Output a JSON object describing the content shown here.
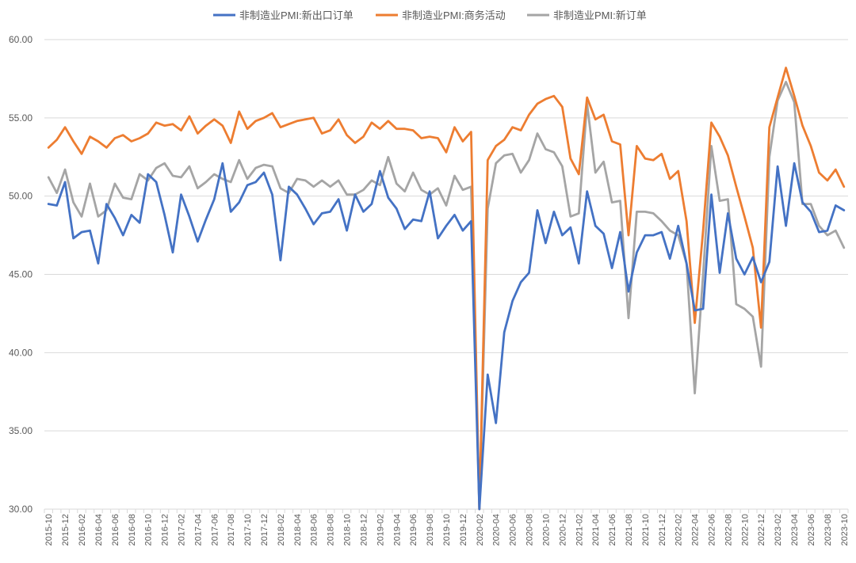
{
  "chart_data": {
    "type": "line",
    "title": "",
    "xlabel": "",
    "ylabel": "",
    "ylim": [
      30,
      60
    ],
    "yticks": [
      30,
      35,
      40,
      45,
      50,
      55,
      60
    ],
    "ytick_labels": [
      "30.00",
      "35.00",
      "40.00",
      "45.00",
      "50.00",
      "55.00",
      "60.00"
    ],
    "grid": true,
    "legend_position": "top",
    "x": [
      "2015-10",
      "2015-11",
      "2015-12",
      "2016-01",
      "2016-02",
      "2016-03",
      "2016-04",
      "2016-05",
      "2016-06",
      "2016-07",
      "2016-08",
      "2016-09",
      "2016-10",
      "2016-11",
      "2016-12",
      "2017-01",
      "2017-02",
      "2017-03",
      "2017-04",
      "2017-05",
      "2017-06",
      "2017-07",
      "2017-08",
      "2017-09",
      "2017-10",
      "2017-11",
      "2017-12",
      "2018-01",
      "2018-02",
      "2018-03",
      "2018-04",
      "2018-05",
      "2018-06",
      "2018-07",
      "2018-08",
      "2018-09",
      "2018-10",
      "2018-11",
      "2018-12",
      "2019-01",
      "2019-02",
      "2019-03",
      "2019-04",
      "2019-05",
      "2019-06",
      "2019-07",
      "2019-08",
      "2019-09",
      "2019-10",
      "2019-11",
      "2019-12",
      "2020-01",
      "2020-02",
      "2020-03",
      "2020-04",
      "2020-05",
      "2020-06",
      "2020-07",
      "2020-08",
      "2020-09",
      "2020-10",
      "2020-11",
      "2020-12",
      "2021-01",
      "2021-02",
      "2021-03",
      "2021-04",
      "2021-05",
      "2021-06",
      "2021-07",
      "2021-08",
      "2021-09",
      "2021-10",
      "2021-11",
      "2021-12",
      "2022-01",
      "2022-02",
      "2022-03",
      "2022-04",
      "2022-05",
      "2022-06",
      "2022-07",
      "2022-08",
      "2022-09",
      "2022-10",
      "2022-11",
      "2022-12",
      "2023-01",
      "2023-02",
      "2023-03",
      "2023-04",
      "2023-05",
      "2023-06",
      "2023-07",
      "2023-08",
      "2023-09",
      "2023-10"
    ],
    "x_tick_labels": [
      "2015-10",
      "2015-12",
      "2016-02",
      "2016-04",
      "2016-06",
      "2016-08",
      "2016-10",
      "2016-12",
      "2017-02",
      "2017-04",
      "2017-06",
      "2017-08",
      "2017-10",
      "2017-12",
      "2018-02",
      "2018-04",
      "2018-06",
      "2018-08",
      "2018-10",
      "2018-12",
      "2019-02",
      "2019-04",
      "2019-06",
      "2019-08",
      "2019-10",
      "2019-12",
      "2020-02",
      "2020-04",
      "2020-06",
      "2020-08",
      "2020-10",
      "2020-12",
      "2021-02",
      "2021-04",
      "2021-06",
      "2021-08",
      "2021-10",
      "2021-12",
      "2022-02",
      "2022-04",
      "2022-06",
      "2022-08",
      "2022-10",
      "2022-12",
      "2023-02",
      "2023-04",
      "2023-06",
      "2023-08",
      "2023-10"
    ],
    "series": [
      {
        "name": "非制造业PMI:新出口订单",
        "color": "#4472C4",
        "values": [
          49.5,
          49.4,
          50.9,
          47.3,
          47.7,
          47.8,
          45.7,
          49.5,
          48.6,
          47.5,
          48.8,
          48.3,
          51.4,
          50.9,
          48.8,
          46.4,
          50.1,
          48.7,
          47.1,
          48.5,
          49.8,
          52.1,
          49.0,
          49.6,
          50.7,
          50.9,
          51.5,
          50.1,
          45.9,
          50.6,
          50.1,
          49.2,
          48.2,
          48.9,
          49.0,
          49.8,
          47.8,
          50.1,
          49.0,
          49.5,
          51.6,
          49.9,
          49.2,
          47.9,
          48.5,
          48.4,
          50.3,
          47.3,
          48.1,
          48.8,
          47.8,
          48.4,
          29.9,
          38.6,
          35.5,
          41.3,
          43.3,
          44.5,
          45.1,
          49.1,
          47.0,
          49.0,
          47.5,
          48.0,
          45.7,
          50.3,
          48.1,
          47.6,
          45.4,
          47.7,
          43.9,
          46.4,
          47.5,
          47.5,
          47.7,
          46.0,
          48.1,
          45.7,
          42.7,
          42.8,
          50.1,
          45.1,
          48.9,
          46.0,
          45.0,
          46.1,
          44.5,
          45.8,
          51.9,
          48.1,
          52.1,
          49.6,
          49.0,
          47.7,
          47.8,
          49.4,
          49.1
        ]
      },
      {
        "name": "非制造业PMI:商务活动",
        "color": "#ED7D31",
        "values": [
          53.1,
          53.6,
          54.4,
          53.5,
          52.7,
          53.8,
          53.5,
          53.1,
          53.7,
          53.9,
          53.5,
          53.7,
          54.0,
          54.7,
          54.5,
          54.6,
          54.2,
          55.1,
          54.0,
          54.5,
          54.9,
          54.5,
          53.4,
          55.4,
          54.3,
          54.8,
          55.0,
          55.3,
          54.4,
          54.6,
          54.8,
          54.9,
          55.0,
          54.0,
          54.2,
          54.9,
          53.9,
          53.4,
          53.8,
          54.7,
          54.3,
          54.8,
          54.3,
          54.3,
          54.2,
          53.7,
          53.8,
          53.7,
          52.8,
          54.4,
          53.5,
          54.1,
          29.6,
          52.3,
          53.2,
          53.6,
          54.4,
          54.2,
          55.2,
          55.9,
          56.2,
          56.4,
          55.7,
          52.4,
          51.4,
          56.3,
          54.9,
          55.2,
          53.5,
          53.3,
          47.5,
          53.2,
          52.4,
          52.3,
          52.7,
          51.1,
          51.6,
          48.4,
          41.9,
          47.8,
          54.7,
          53.8,
          52.6,
          50.6,
          48.7,
          46.7,
          41.6,
          54.4,
          56.3,
          58.2,
          56.4,
          54.5,
          53.2,
          51.5,
          51.0,
          51.7,
          50.6
        ]
      },
      {
        "name": "非制造业PMI:新订单",
        "color": "#A5A5A5",
        "values": [
          51.2,
          50.2,
          51.7,
          49.6,
          48.7,
          50.8,
          48.7,
          49.1,
          50.8,
          49.9,
          49.8,
          51.4,
          51.0,
          51.8,
          52.1,
          51.3,
          51.2,
          51.9,
          50.5,
          50.9,
          51.4,
          51.1,
          50.9,
          52.3,
          51.1,
          51.8,
          52.0,
          51.9,
          50.5,
          50.2,
          51.1,
          51.0,
          50.6,
          51.0,
          50.6,
          51.0,
          50.1,
          50.1,
          50.4,
          51.0,
          50.7,
          52.5,
          50.8,
          50.3,
          51.5,
          50.4,
          50.1,
          50.5,
          49.4,
          51.3,
          50.4,
          50.6,
          26.5,
          49.2,
          52.1,
          52.6,
          52.7,
          51.5,
          52.3,
          54.0,
          53.0,
          52.8,
          51.9,
          48.7,
          48.9,
          55.9,
          51.5,
          52.2,
          49.6,
          49.7,
          42.2,
          49.0,
          49.0,
          48.9,
          48.4,
          47.8,
          47.5,
          45.7,
          37.4,
          45.0,
          53.2,
          49.7,
          49.8,
          43.1,
          42.8,
          42.3,
          39.1,
          52.5,
          56.1,
          57.3,
          56.0,
          49.5,
          49.5,
          48.1,
          47.5,
          47.8,
          46.7
        ]
      }
    ]
  }
}
